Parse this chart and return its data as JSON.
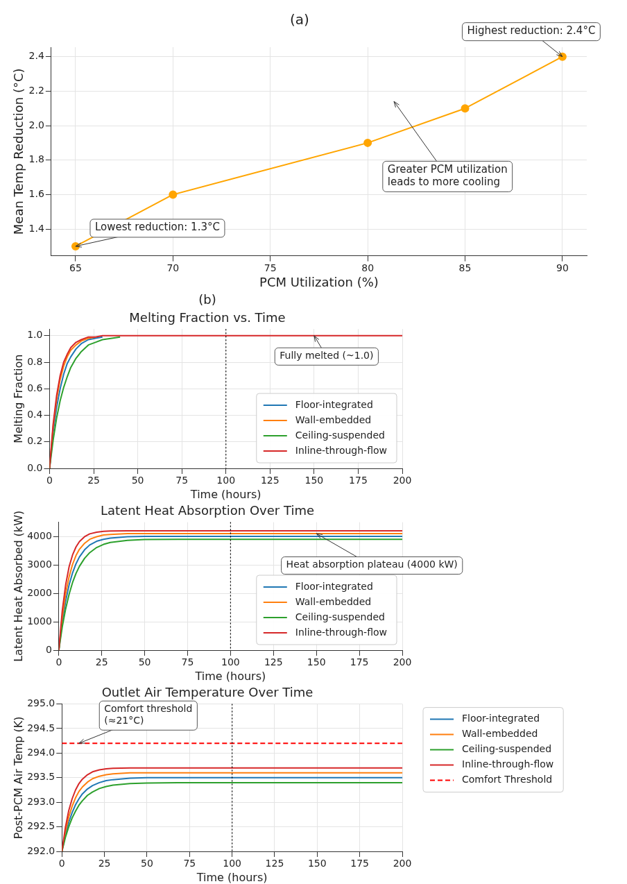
{
  "chart_data": [
    {
      "type": "line",
      "title": "(a)",
      "xlabel": "PCM Utilization (%)",
      "ylabel": "Mean Temp Reduction (°C)",
      "marker": "circle",
      "grid": true,
      "series": [
        {
          "color": "#ffa500",
          "x": [
            65,
            70,
            80,
            85,
            90
          ],
          "values": [
            1.3,
            1.6,
            1.9,
            2.1,
            2.4
          ]
        }
      ],
      "xlim": [
        63.75,
        91.25
      ],
      "xticks": [
        65,
        70,
        75,
        80,
        85,
        90
      ],
      "ylim": [
        1.245,
        2.455
      ],
      "yticks": [
        1.4,
        1.6,
        1.8,
        {
          "value": 2.0,
          "label": "2.0"
        },
        2.2,
        2.4
      ],
      "annotations": [
        {
          "text": "Highest reduction: 2.4°C",
          "x": 90,
          "y": 2.4
        },
        {
          "text": "Lowest reduction: 1.3°C",
          "x": 65,
          "y": 1.3
        },
        "Greater PCM utilization\nleads to more cooling"
      ]
    },
    {
      "type": "line",
      "title": "(b)",
      "subtitle": "Melting Fraction vs. Time",
      "xlabel": "Time (hours)",
      "ylabel": "Melting Fraction",
      "grid": true,
      "legend": "bottom right",
      "x": [
        0,
        2,
        4,
        6,
        8,
        10,
        12,
        15,
        18,
        22,
        26,
        30,
        40,
        50,
        75,
        100,
        150,
        200
      ],
      "series": [
        {
          "name": "Floor-integrated",
          "color": "#1f77b4",
          "values": [
            0,
            0.27,
            0.46,
            0.6,
            0.71,
            0.79,
            0.84,
            0.9,
            0.94,
            0.97,
            0.98,
            0.99,
            null,
            null,
            null,
            null,
            null,
            null
          ]
        },
        {
          "name": "Wall-embedded",
          "color": "#ff7f0e",
          "values": [
            0,
            0.31,
            0.52,
            0.67,
            0.77,
            0.84,
            0.89,
            0.93,
            0.96,
            0.98,
            0.99,
            null,
            null,
            null,
            null,
            null,
            null,
            null
          ]
        },
        {
          "name": "Ceiling-suspended",
          "color": "#2ca02c",
          "values": [
            0,
            0.21,
            0.38,
            0.51,
            0.61,
            0.69,
            0.76,
            0.83,
            0.88,
            0.93,
            0.95,
            0.97,
            0.99,
            null,
            null,
            null,
            null,
            null
          ]
        },
        {
          "name": "Inline-through-flow",
          "color": "#d62728",
          "values": [
            0,
            0.33,
            0.55,
            0.7,
            0.8,
            0.86,
            0.91,
            0.95,
            0.97,
            0.99,
            0.99,
            1.0,
            1.0,
            1.0,
            1.0,
            1.0,
            1.0,
            1.0
          ]
        }
      ],
      "xlim": [
        0,
        200
      ],
      "xticks": [
        0,
        25,
        50,
        75,
        100,
        125,
        150,
        175,
        200
      ],
      "ylim": [
        0,
        1.05
      ],
      "yticks": [
        {
          "value": 0,
          "label": "0.0"
        },
        0.2,
        0.4,
        0.6,
        0.8,
        {
          "value": 1,
          "label": "1.0"
        }
      ],
      "ref_lines": [
        {
          "axis": "x",
          "value": 100,
          "color": "#000000",
          "line_style": "dotted"
        }
      ],
      "annotations": [
        {
          "text": "Fully melted (~1.0)",
          "x": 150,
          "y": 1.0
        }
      ]
    },
    {
      "type": "line",
      "title": "Latent Heat Absorption Over Time",
      "xlabel": "Time (hours)",
      "ylabel": "Latent Heat Absorbed (kW)",
      "grid": true,
      "legend": "bottom right",
      "x": [
        0,
        2,
        4,
        6,
        8,
        10,
        12,
        15,
        18,
        22,
        26,
        30,
        40,
        50,
        75,
        100,
        150,
        200
      ],
      "series": [
        {
          "name": "Floor-integrated",
          "color": "#1f77b4",
          "values": [
            0,
            1000,
            1740,
            2300,
            2720,
            3040,
            3280,
            3530,
            3700,
            3830,
            3900,
            3940,
            3990,
            4000,
            4000,
            4000,
            4000,
            4000
          ]
        },
        {
          "name": "Wall-embedded",
          "color": "#ff7f0e",
          "values": [
            0,
            1160,
            2000,
            2590,
            3020,
            3330,
            3550,
            3760,
            3900,
            3990,
            4050,
            4070,
            4100,
            4100,
            4100,
            4100,
            4100,
            4100
          ]
        },
        {
          "name": "Ceiling-suspended",
          "color": "#2ca02c",
          "values": [
            0,
            820,
            1460,
            1970,
            2380,
            2700,
            2950,
            3230,
            3430,
            3610,
            3720,
            3790,
            3860,
            3890,
            3900,
            3900,
            3900,
            3900
          ]
        },
        {
          "name": "Inline-through-flow",
          "color": "#d62728",
          "values": [
            0,
            1390,
            2310,
            2940,
            3350,
            3630,
            3820,
            3990,
            4090,
            4150,
            4180,
            4190,
            4200,
            4200,
            4200,
            4200,
            4200,
            4200
          ]
        }
      ],
      "xlim": [
        0,
        200
      ],
      "xticks": [
        0,
        25,
        50,
        75,
        100,
        125,
        150,
        175,
        200
      ],
      "ylim": [
        0,
        4500
      ],
      "yticks": [
        0,
        1000,
        2000,
        3000,
        4000
      ],
      "ref_lines": [
        {
          "axis": "x",
          "value": 100,
          "color": "#000000",
          "line_style": "dotted"
        }
      ],
      "annotations": [
        {
          "text": "Heat absorption plateau (4000 kW)",
          "x": 150,
          "y": 4100
        }
      ]
    },
    {
      "type": "line",
      "title": "Outlet Air Temperature Over Time",
      "xlabel": "Time (hours)",
      "ylabel": "Post-PCM Air Temp (K)",
      "grid": true,
      "legend": "right",
      "x": [
        0,
        2,
        4,
        6,
        8,
        10,
        12,
        15,
        18,
        22,
        26,
        30,
        40,
        50,
        75,
        100,
        150,
        200
      ],
      "series": [
        {
          "name": "Floor-integrated",
          "color": "#1f77b4",
          "values": [
            292,
            292.33,
            292.59,
            292.79,
            292.95,
            293.07,
            293.17,
            293.27,
            293.34,
            293.4,
            293.44,
            293.46,
            293.49,
            293.5,
            293.5,
            293.5,
            293.5,
            293.5
          ]
        },
        {
          "name": "Wall-embedded",
          "color": "#ff7f0e",
          "values": [
            292,
            292.4,
            292.7,
            292.92,
            293.09,
            293.22,
            293.31,
            293.41,
            293.48,
            293.53,
            293.56,
            293.58,
            293.6,
            293.6,
            293.6,
            293.6,
            293.6,
            293.6
          ]
        },
        {
          "name": "Ceiling-suspended",
          "color": "#2ca02c",
          "values": [
            292,
            292.28,
            292.5,
            292.68,
            292.82,
            292.94,
            293.03,
            293.14,
            293.21,
            293.28,
            293.32,
            293.35,
            293.38,
            293.39,
            293.4,
            293.4,
            293.4,
            293.4
          ]
        },
        {
          "name": "Inline-through-flow",
          "color": "#d62728",
          "values": [
            292,
            292.48,
            292.83,
            293.07,
            293.25,
            293.38,
            293.47,
            293.56,
            293.62,
            293.66,
            293.68,
            293.69,
            293.7,
            293.7,
            293.7,
            293.7,
            293.7,
            293.7
          ]
        },
        {
          "name": "Comfort Threshold",
          "color": "#ff0000",
          "line_style": "dashed",
          "x": [
            0,
            200
          ],
          "values": [
            294.2,
            294.2
          ]
        }
      ],
      "xlim": [
        0,
        200
      ],
      "xticks": [
        0,
        25,
        50,
        75,
        100,
        125,
        150,
        175,
        200
      ],
      "ylim": [
        292,
        295
      ],
      "yticks": [
        {
          "value": 292,
          "label": "292.0"
        },
        292.5,
        {
          "value": 293,
          "label": "293.0"
        },
        293.5,
        {
          "value": 294,
          "label": "294.0"
        },
        294.5,
        {
          "value": 295,
          "label": "295.0"
        }
      ],
      "ref_lines": [
        {
          "axis": "x",
          "value": 100,
          "color": "#000000",
          "line_style": "dotted"
        }
      ],
      "annotations": [
        {
          "text": "Comfort threshold\n(≈21°C)",
          "x": 10,
          "y": 294.2
        }
      ]
    }
  ]
}
